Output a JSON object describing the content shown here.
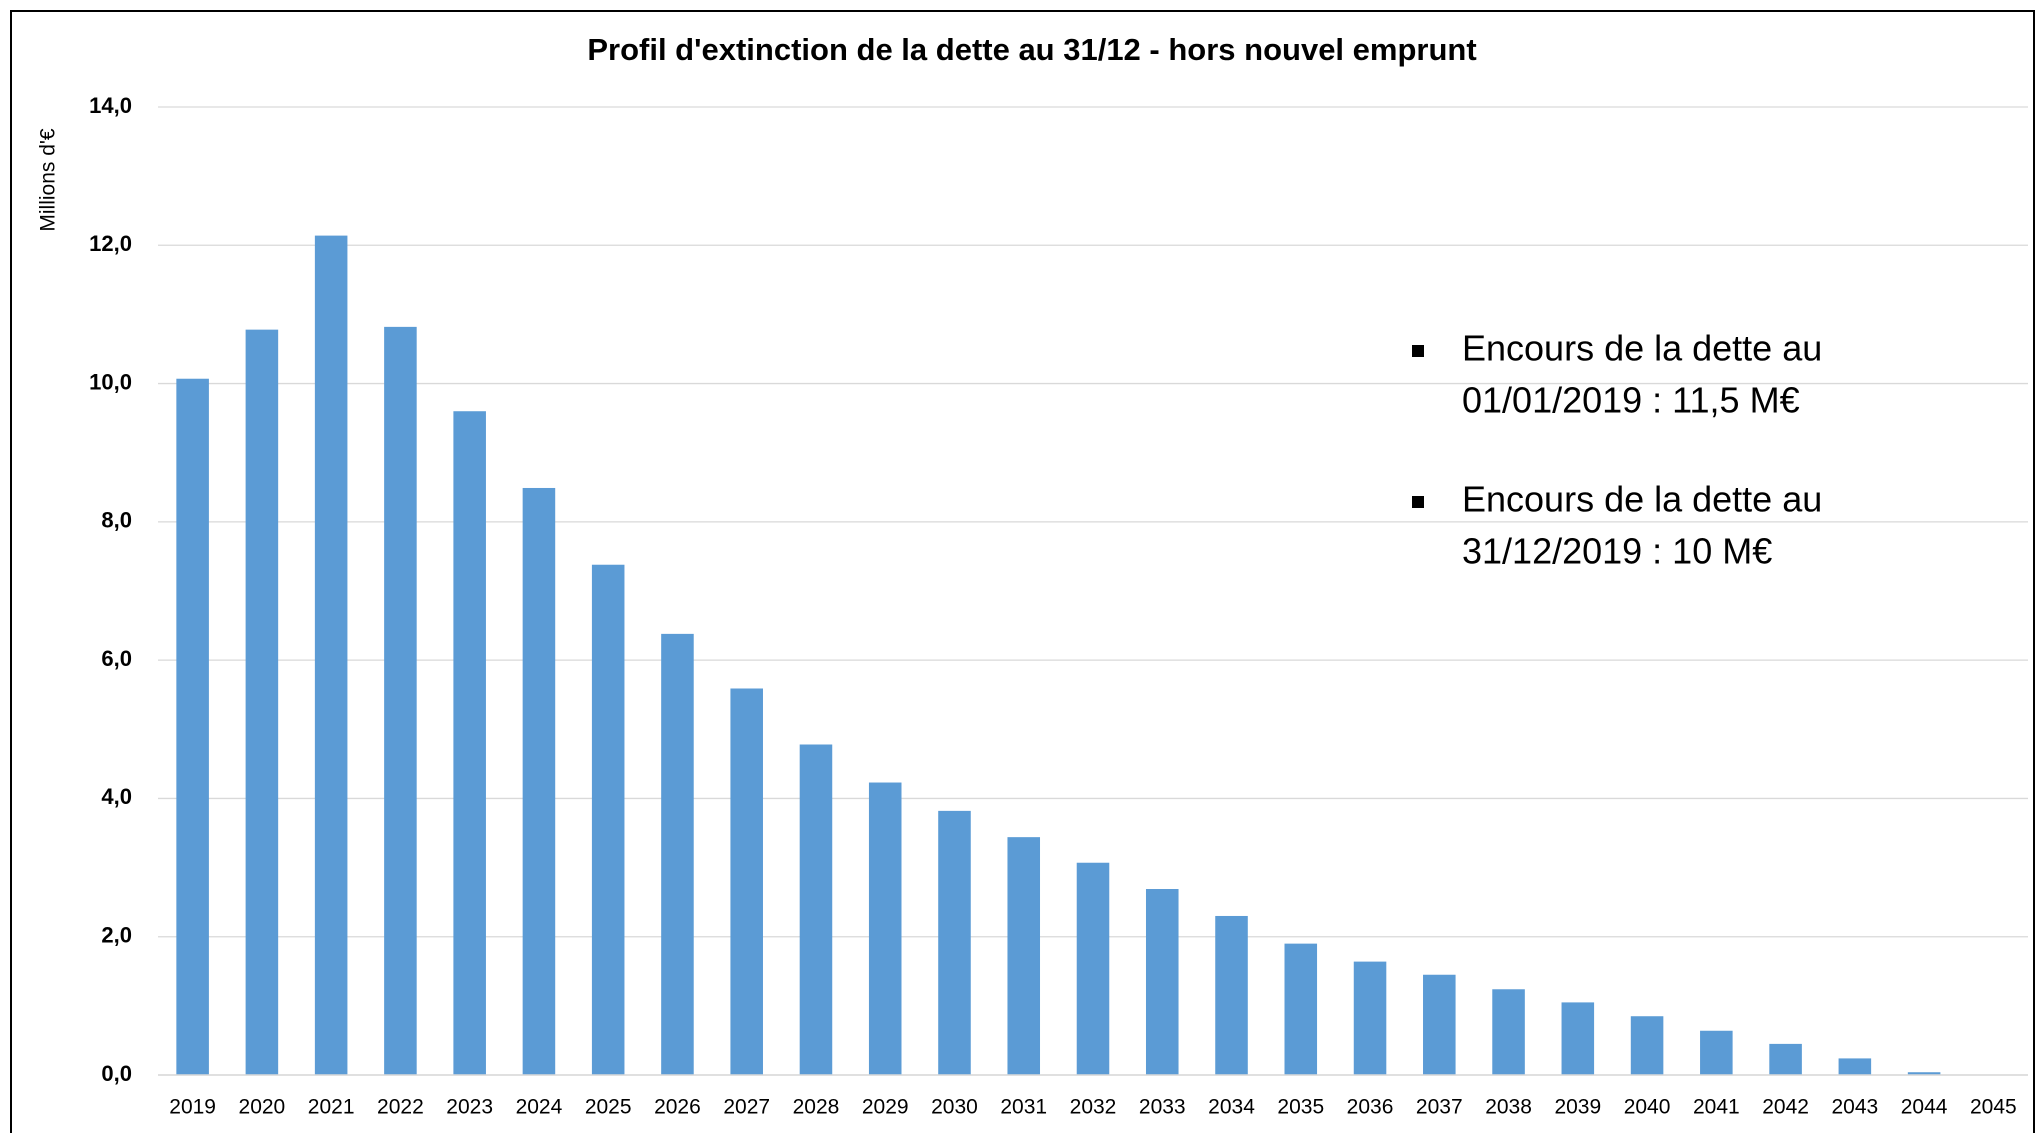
{
  "chart_data": {
    "type": "bar",
    "title": "Profil d'extinction de la dette au 31/12 - hors nouvel emprunt",
    "y_axis_label": "Millions d'€",
    "categories": [
      "2019",
      "2020",
      "2021",
      "2022",
      "2023",
      "2024",
      "2025",
      "2026",
      "2027",
      "2028",
      "2029",
      "2030",
      "2031",
      "2032",
      "2033",
      "2034",
      "2035",
      "2036",
      "2037",
      "2038",
      "2039",
      "2040",
      "2041",
      "2042",
      "2043",
      "2044",
      "2045"
    ],
    "values": [
      10.07,
      10.78,
      12.14,
      10.82,
      9.6,
      8.49,
      7.38,
      6.38,
      5.59,
      4.78,
      4.23,
      3.82,
      3.44,
      3.07,
      2.69,
      2.3,
      1.9,
      1.64,
      1.45,
      1.24,
      1.05,
      0.85,
      0.64,
      0.45,
      0.24,
      0.04,
      0
    ],
    "color": "#5b9bd5",
    "ylim": [
      0,
      14
    ],
    "yticks": [
      {
        "value": 0,
        "label": "0,0"
      },
      {
        "value": 2,
        "label": "2,0"
      },
      {
        "value": 4,
        "label": "4,0"
      },
      {
        "value": 6,
        "label": "6,0"
      },
      {
        "value": 8,
        "label": "8,0"
      },
      {
        "value": 10,
        "label": "10,0"
      },
      {
        "value": 12,
        "label": "12,0"
      },
      {
        "value": 14,
        "label": "14,0"
      }
    ],
    "grid": true,
    "annotations": [
      [
        "Encours de la dette au",
        "01/01/2019 : 11,5 M€"
      ],
      [
        "Encours de la dette au",
        "31/12/2019 : 10 M€"
      ]
    ]
  }
}
